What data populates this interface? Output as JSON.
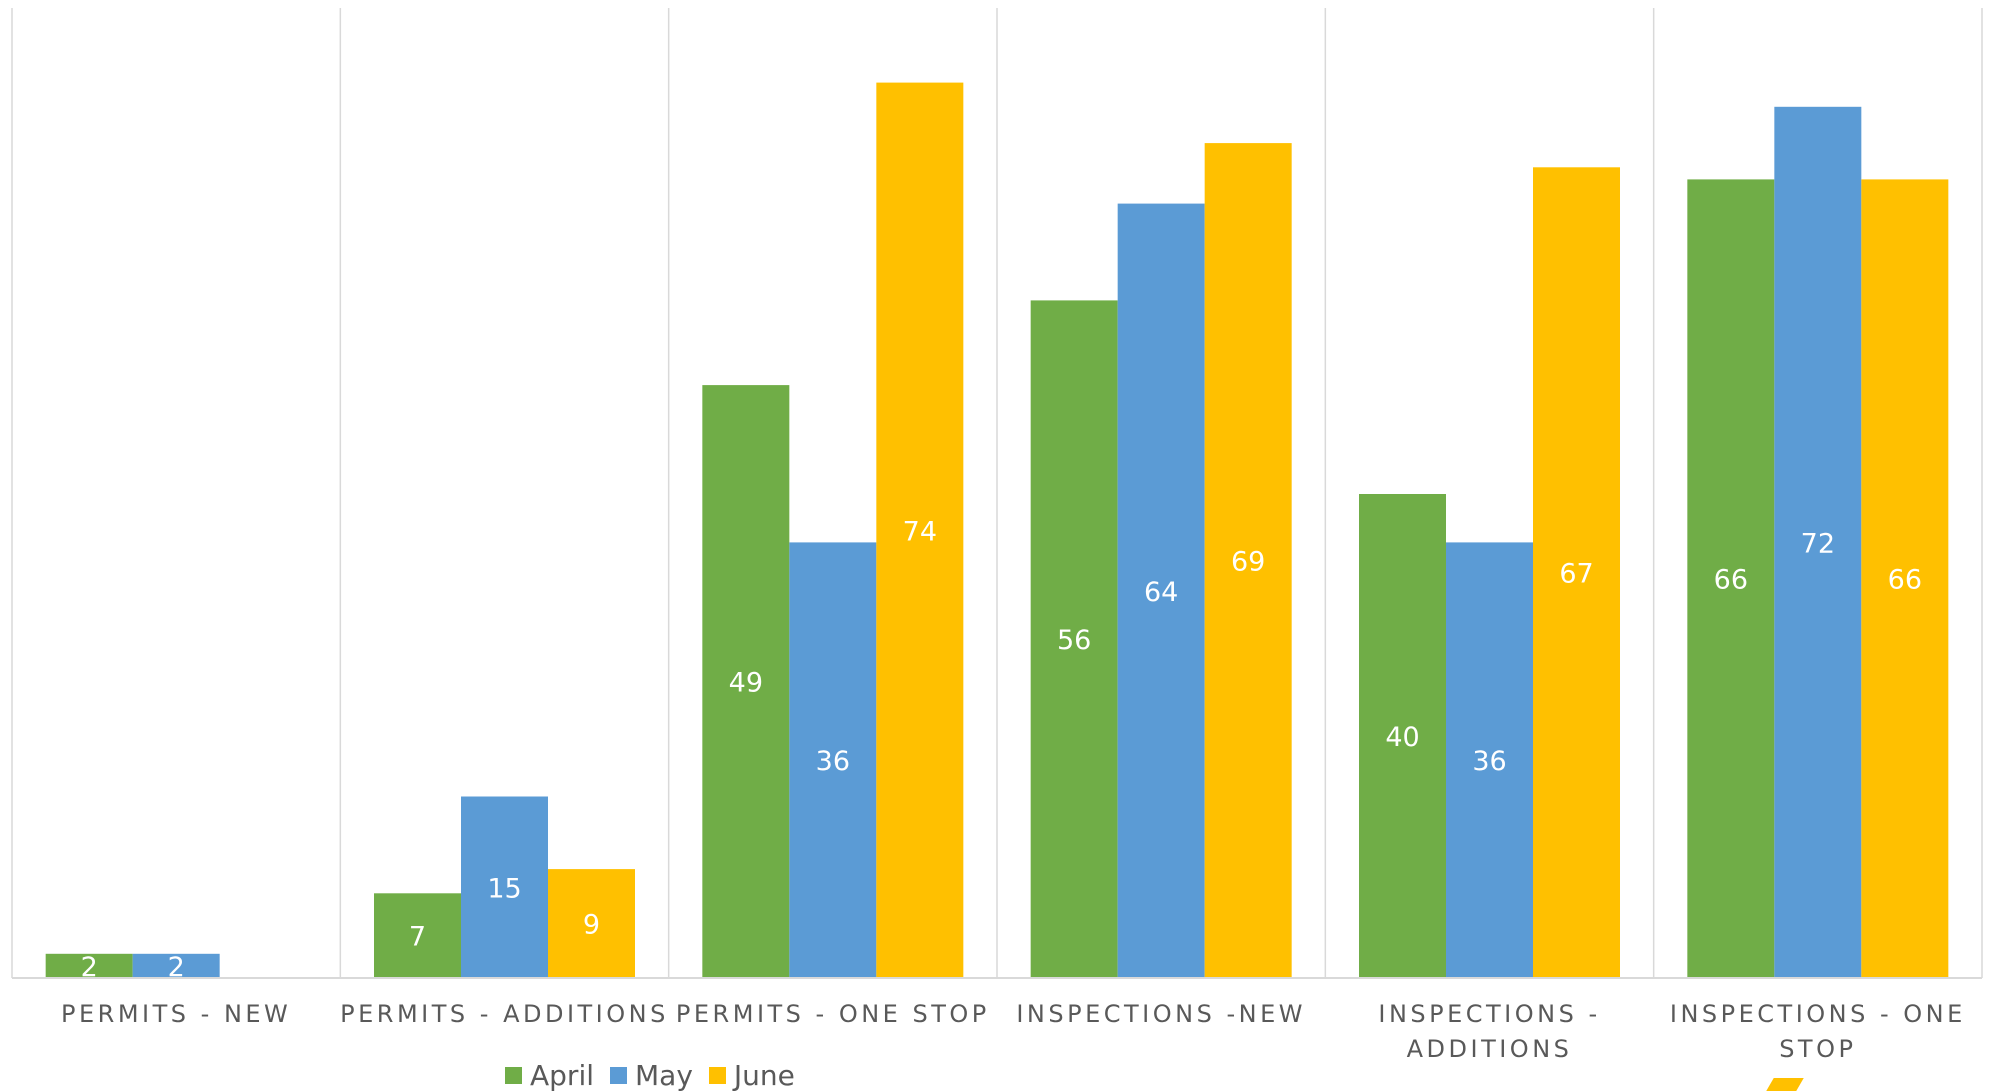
{
  "chart_data": {
    "type": "bar",
    "categories": [
      [
        "PERMITS - NEW"
      ],
      [
        "PERMITS - ADDITIONS"
      ],
      [
        "PERMITS - ONE STOP"
      ],
      [
        "INSPECTIONS -NEW"
      ],
      [
        "INSPECTIONS -",
        "ADDITIONS"
      ],
      [
        "INSPECTIONS - ONE",
        "STOP"
      ]
    ],
    "series": [
      {
        "name": "April",
        "color": "#70ad47",
        "values": [
          2,
          7,
          49,
          56,
          40,
          66
        ]
      },
      {
        "name": "May",
        "color": "#5b9bd5",
        "values": [
          2,
          15,
          36,
          64,
          36,
          72
        ]
      },
      {
        "name": "June",
        "color": "#ffc000",
        "values": [
          null,
          9,
          74,
          69,
          67,
          66
        ]
      }
    ],
    "data_labels": true,
    "ylim": [
      0,
      80
    ],
    "gridlines": "vertical category separators",
    "legend_position": "bottom"
  },
  "colors": {
    "axis": "#d9d9d9",
    "text": "#595959",
    "label": "#ffffff"
  }
}
